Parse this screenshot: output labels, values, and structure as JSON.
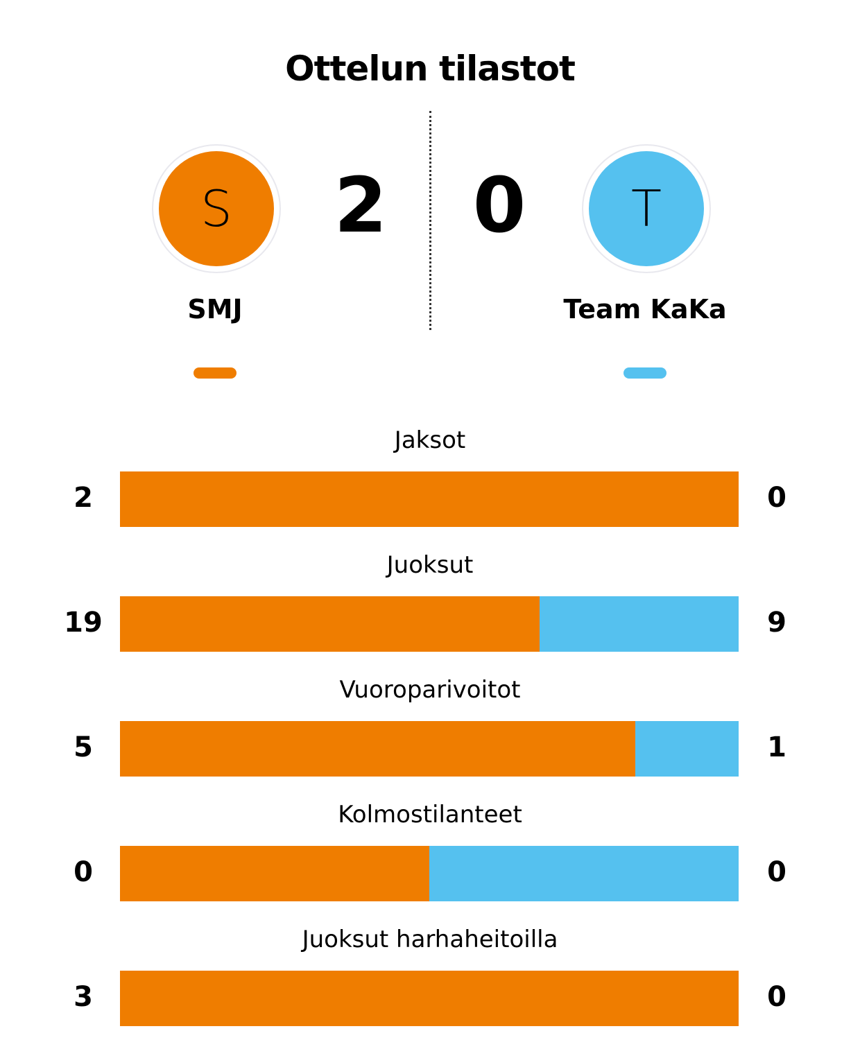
{
  "title": "Ottelun tilastot",
  "colors": {
    "home": "#EF7D00",
    "away": "#55C1EF"
  },
  "home": {
    "name": "SMJ",
    "initial": "S",
    "score": "2"
  },
  "away": {
    "name": "Team KaKa",
    "initial": "T",
    "score": "0"
  },
  "chart_data": {
    "type": "bar",
    "orientation": "horizontal-stacked-share",
    "categories": [
      "Jaksot",
      "Juoksut",
      "Vuoroparivoitot",
      "Kolmostilanteet",
      "Juoksut harhaheitoilla"
    ],
    "series": [
      {
        "name": "SMJ",
        "values": [
          2,
          19,
          5,
          0,
          3
        ]
      },
      {
        "name": "Team KaKa",
        "values": [
          0,
          9,
          1,
          0,
          0
        ]
      }
    ]
  }
}
